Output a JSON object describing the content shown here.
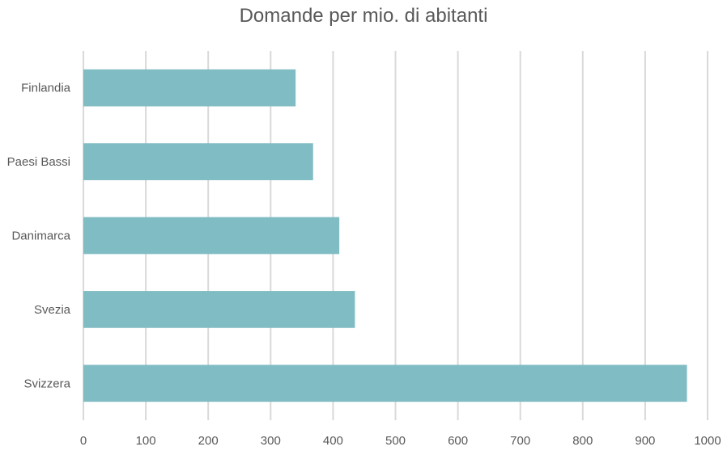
{
  "chart_data": {
    "type": "bar",
    "orientation": "horizontal",
    "title": "Domande per mio. di abitanti",
    "xlabel": "",
    "ylabel": "",
    "categories": [
      "Finlandia",
      "Paesi Bassi",
      "Danimarca",
      "Svezia",
      "Svizzera"
    ],
    "values": [
      340,
      368,
      410,
      435,
      967
    ],
    "xlim": [
      0,
      1000
    ],
    "xticks": [
      "0",
      "100",
      "200",
      "300",
      "400",
      "500",
      "600",
      "700",
      "800",
      "900",
      "1000"
    ],
    "grid": "vertical",
    "legend": "none",
    "colors": {
      "bar": "#80BCC3",
      "grid": "#D9D9D9",
      "text": "#595959"
    }
  }
}
